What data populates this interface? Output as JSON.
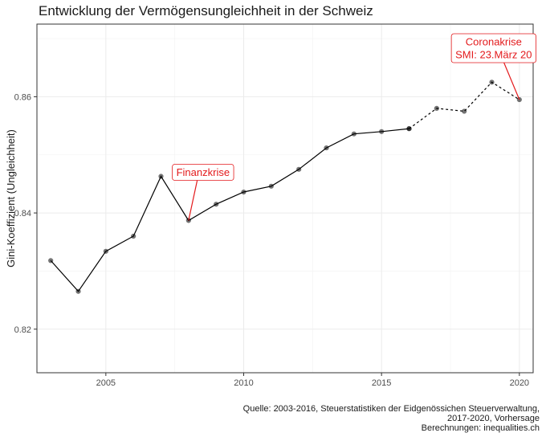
{
  "chart_data": {
    "type": "line",
    "title": "Entwicklung der Vermögensungleichheit in der Schweiz",
    "xlabel": "",
    "ylabel": "Gini-Koeffizient (Ungleichheit)",
    "xlim": [
      2002.5,
      2020.5
    ],
    "ylim": [
      0.8125,
      0.8725
    ],
    "x_ticks": [
      2005,
      2010,
      2015,
      2020
    ],
    "y_ticks": [
      0.82,
      0.84,
      0.86
    ],
    "x_tick_labels": [
      "2005",
      "2010",
      "2015",
      "2020"
    ],
    "y_tick_labels": [
      "0.82",
      "0.84",
      "0.86"
    ],
    "grid": true,
    "series": [
      {
        "name": "Steuerstatistik",
        "line_style": "solid",
        "x": [
          2003,
          2004,
          2005,
          2006,
          2007,
          2008,
          2009,
          2010,
          2011,
          2012,
          2013,
          2014,
          2015,
          2016
        ],
        "values": [
          0.8318,
          0.8265,
          0.8334,
          0.836,
          0.8463,
          0.8387,
          0.8415,
          0.8436,
          0.8446,
          0.8475,
          0.8512,
          0.8536,
          0.854,
          0.8545
        ]
      },
      {
        "name": "Vorhersage",
        "line_style": "dashed",
        "x": [
          2016,
          2017,
          2018,
          2019,
          2020
        ],
        "values": [
          0.8545,
          0.858,
          0.8575,
          0.8625,
          0.8595
        ]
      }
    ],
    "annotations": [
      {
        "id": "finanzkrise",
        "text_lines": [
          "Finanzkrise"
        ],
        "point_x": 2008,
        "point_y": 0.8387,
        "color": "#e31a1c"
      },
      {
        "id": "coronakrise",
        "text_lines": [
          "Coronakrise",
          "SMI: 23.März 20"
        ],
        "point_x": 2020,
        "point_y": 0.8595,
        "color": "#e31a1c"
      }
    ]
  },
  "caption": {
    "line1": "Quelle: 2003-2016, Steuerstatistiken der Eidgenössichen Steuerverwaltung,",
    "line2": "2017-2020, Vorhersage",
    "line3": "Berechnungen: inequalities.ch"
  }
}
